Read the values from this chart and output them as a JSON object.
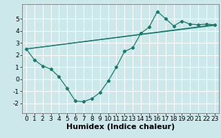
{
  "xlabel": "Humidex (Indice chaleur)",
  "background_color": "#cce8ea",
  "grid_color": "#ffffff",
  "line_color": "#1a7a6e",
  "xlim": [
    -0.5,
    23.5
  ],
  "ylim": [
    -2.8,
    6.2
  ],
  "xticks": [
    0,
    1,
    2,
    3,
    4,
    5,
    6,
    7,
    8,
    9,
    10,
    11,
    12,
    13,
    14,
    15,
    16,
    17,
    18,
    19,
    20,
    21,
    22,
    23
  ],
  "yticks": [
    -2,
    -1,
    0,
    1,
    2,
    3,
    4,
    5
  ],
  "series1_x": [
    0,
    1,
    2,
    3,
    4,
    5,
    6,
    7,
    8,
    9,
    10,
    11,
    12,
    13,
    14,
    15,
    16,
    17,
    18,
    19,
    20,
    21,
    22,
    23
  ],
  "series1_y": [
    2.5,
    1.6,
    1.1,
    0.85,
    0.2,
    -0.75,
    -1.8,
    -1.85,
    -1.6,
    -1.1,
    -0.15,
    1.0,
    2.3,
    2.6,
    3.8,
    4.3,
    5.6,
    5.0,
    4.4,
    4.8,
    4.55,
    4.5,
    4.55,
    4.5
  ],
  "series2_x": [
    0,
    23
  ],
  "series2_y": [
    2.5,
    4.5
  ],
  "series3_x": [
    0,
    23
  ],
  "series3_y": [
    2.5,
    4.45
  ],
  "xlabel_fontsize": 8,
  "tick_fontsize": 6.5
}
